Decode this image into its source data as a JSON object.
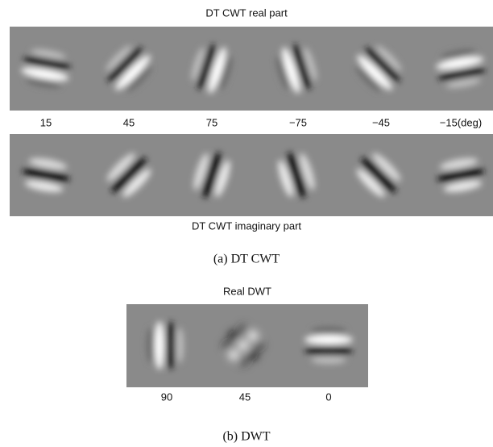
{
  "panel_a": {
    "title_top": "DT CWT real part",
    "angle_labels": [
      "15",
      "45",
      "75",
      "−75",
      "−45",
      "−15(deg)"
    ],
    "title_bottom": "DT CWT imaginary part",
    "caption": "(a) DT CWT"
  },
  "panel_b": {
    "title": "Real DWT",
    "angle_labels": [
      "90",
      "45",
      "0"
    ],
    "caption": "(b) DWT"
  }
}
